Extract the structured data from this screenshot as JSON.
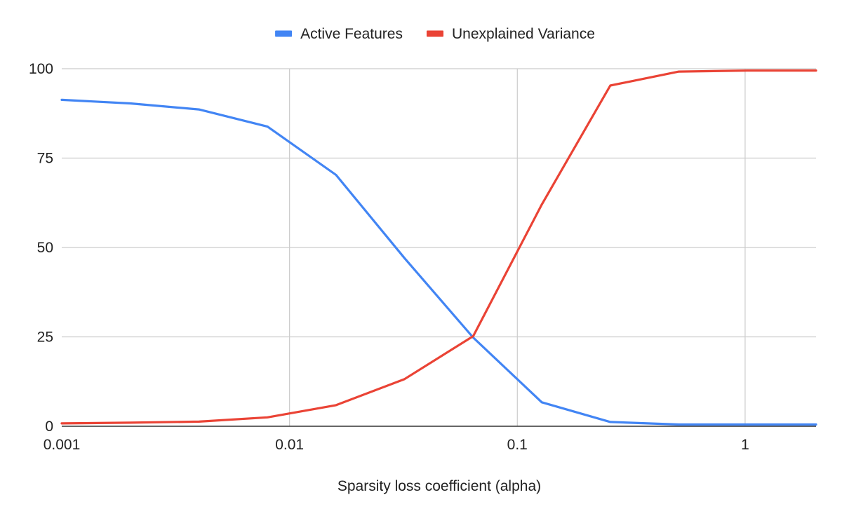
{
  "chart_data": {
    "type": "line",
    "title": "",
    "xlabel": "Sparsity loss coefficient (alpha)",
    "ylabel": "",
    "x_scale": "log",
    "xlim": [
      0.001,
      2.048
    ],
    "ylim": [
      0,
      100
    ],
    "x_ticks": [
      0.001,
      0.01,
      0.1,
      1
    ],
    "x_tick_labels": [
      "0.001",
      "0.01",
      "0.1",
      "1"
    ],
    "y_ticks": [
      0,
      25,
      50,
      75,
      100
    ],
    "y_tick_labels": [
      "0",
      "25",
      "50",
      "75",
      "100"
    ],
    "grid": true,
    "legend_position": "top",
    "x": [
      0.001,
      0.002,
      0.004,
      0.008,
      0.016,
      0.032,
      0.064,
      0.128,
      0.256,
      0.512,
      1.024,
      2.048
    ],
    "series": [
      {
        "name": "Active Features",
        "color": "#4285F4",
        "values": [
          91.3,
          90.3,
          88.6,
          83.8,
          70.3,
          47.0,
          24.8,
          6.7,
          1.2,
          0.5,
          0.5,
          0.5
        ]
      },
      {
        "name": "Unexplained Variance",
        "color": "#EA4335",
        "values": [
          0.8,
          1.0,
          1.3,
          2.5,
          5.9,
          13.2,
          25.2,
          62.0,
          95.3,
          99.2,
          99.5,
          99.5
        ]
      }
    ]
  }
}
